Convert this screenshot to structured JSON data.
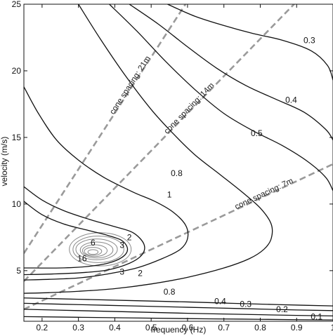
{
  "chart_data": {
    "type": "line",
    "title": "",
    "xlabel": "frequency (Hz)",
    "ylabel": "velocity (m/s)",
    "xlim": [
      0.15,
      1.0
    ],
    "ylim": [
      1.2,
      25
    ],
    "x_ticks": [
      "0.2",
      "0.3",
      "0.4",
      "0.5",
      "0.6",
      "0.7",
      "0.8",
      "0.9",
      "1"
    ],
    "y_ticks": [
      "5",
      "10",
      "15",
      "20",
      "25"
    ],
    "grid": false,
    "contour_levels": [
      "0.1",
      "0.2",
      "0.3",
      "0.4",
      "0.5",
      "0.8",
      "1",
      "2",
      "3",
      "6",
      "16"
    ],
    "contour_labels": [
      {
        "text": "0.3",
        "x": 0.935,
        "y": 22.3
      },
      {
        "text": "0.4",
        "x": 0.885,
        "y": 17.8
      },
      {
        "text": "0.5",
        "x": 0.79,
        "y": 15.3
      },
      {
        "text": "0.8",
        "x": 0.57,
        "y": 12.3
      },
      {
        "text": "1",
        "x": 0.55,
        "y": 10.7
      },
      {
        "text": "2",
        "x": 0.44,
        "y": 7.5
      },
      {
        "text": "3",
        "x": 0.42,
        "y": 6.9
      },
      {
        "text": "6",
        "x": 0.34,
        "y": 7.1
      },
      {
        "text": "16",
        "x": 0.31,
        "y": 5.9
      },
      {
        "text": "3",
        "x": 0.42,
        "y": 4.9
      },
      {
        "text": "2",
        "x": 0.47,
        "y": 4.8
      },
      {
        "text": "0.8",
        "x": 0.55,
        "y": 3.4
      },
      {
        "text": "0.4",
        "x": 0.69,
        "y": 2.7
      },
      {
        "text": "0.3",
        "x": 0.76,
        "y": 2.5
      },
      {
        "text": "0.2",
        "x": 0.86,
        "y": 2.1
      },
      {
        "text": "0.1",
        "x": 0.955,
        "y": 1.55
      }
    ],
    "cone_spacing_lines": [
      {
        "label": "cone spacing: 21m",
        "x": [
          0.15,
          0.63
        ],
        "y": [
          6.3,
          26.5
        ]
      },
      {
        "label": "cone spacing: 14m",
        "x": [
          0.15,
          1.0
        ],
        "y": [
          4.2,
          28.0
        ]
      },
      {
        "label": "cone spacing: 7m",
        "x": [
          0.15,
          1.0
        ],
        "y": [
          2.1,
          13.0
        ]
      }
    ],
    "contours": [
      {
        "level": "0.3",
        "x": [
          0.545,
          0.62,
          0.7,
          0.78,
          0.86,
          0.94,
          0.985,
          1.0
        ],
        "y": [
          25,
          24.1,
          23.4,
          22.8,
          22.3,
          21.5,
          20.4,
          19.3
        ]
      },
      {
        "level": "0.4",
        "x": [
          0.44,
          0.52,
          0.6,
          0.68,
          0.76,
          0.84,
          0.92,
          0.98,
          1.0
        ],
        "y": [
          25,
          23.5,
          21.8,
          20.2,
          18.9,
          17.9,
          16.9,
          15.6,
          14.8
        ]
      },
      {
        "level": "0.5",
        "x": [
          0.385,
          0.46,
          0.54,
          0.62,
          0.7,
          0.78,
          0.86,
          0.93,
          0.98,
          1.0
        ],
        "y": [
          25,
          23.0,
          20.7,
          18.6,
          16.8,
          15.5,
          14.4,
          13.2,
          12.0,
          11.0
        ]
      },
      {
        "level": "0.8",
        "x": [
          0.3,
          0.36,
          0.43,
          0.5,
          0.56,
          0.62,
          0.69,
          0.75,
          0.8,
          0.83,
          0.83,
          0.81,
          0.77,
          0.7,
          0.6,
          0.5,
          0.4,
          0.3,
          0.22,
          0.15
        ],
        "y": [
          25,
          22.4,
          19.6,
          17.1,
          15.3,
          13.7,
          12.2,
          10.9,
          9.7,
          8.5,
          7.4,
          6.6,
          5.9,
          5.2,
          4.5,
          4.0,
          3.65,
          3.45,
          3.35,
          3.3
        ]
      },
      {
        "level": "1",
        "x": [
          0.15,
          0.19,
          0.24,
          0.3,
          0.37,
          0.45,
          0.51,
          0.56,
          0.595,
          0.6,
          0.58,
          0.53,
          0.46,
          0.38,
          0.3,
          0.22,
          0.15
        ],
        "y": [
          18.8,
          16.8,
          14.8,
          13.3,
          12.0,
          10.9,
          10.2,
          9.4,
          8.4,
          7.4,
          6.6,
          5.9,
          5.2,
          4.75,
          4.45,
          4.35,
          4.3
        ]
      },
      {
        "level": "2",
        "x": [
          0.15,
          0.2,
          0.26,
          0.33,
          0.4,
          0.45,
          0.48,
          0.475,
          0.44,
          0.38,
          0.31,
          0.23,
          0.15
        ],
        "y": [
          11.3,
          10.3,
          9.5,
          8.85,
          8.3,
          7.85,
          7.0,
          6.2,
          5.55,
          5.05,
          4.85,
          4.75,
          4.7
        ]
      },
      {
        "level": "3",
        "x": [
          0.15,
          0.2,
          0.26,
          0.33,
          0.38,
          0.42,
          0.435,
          0.42,
          0.38,
          0.32,
          0.25,
          0.18,
          0.15
        ],
        "y": [
          10.2,
          9.2,
          8.5,
          8.0,
          7.65,
          7.25,
          6.6,
          6.0,
          5.55,
          5.3,
          5.2,
          5.2,
          5.2
        ]
      },
      {
        "level": "0.4",
        "x": [
          0.15,
          0.3,
          0.45,
          0.6,
          0.72,
          0.85,
          1.0
        ],
        "y": [
          2.95,
          2.85,
          2.75,
          2.65,
          2.55,
          2.45,
          2.35
        ]
      },
      {
        "level": "0.3",
        "x": [
          0.15,
          0.3,
          0.45,
          0.6,
          0.75,
          0.9,
          1.0
        ],
        "y": [
          2.55,
          2.45,
          2.35,
          2.25,
          2.15,
          2.05,
          2.0
        ]
      },
      {
        "level": "0.2",
        "x": [
          0.15,
          0.3,
          0.45,
          0.6,
          0.75,
          0.9,
          1.0
        ],
        "y": [
          2.1,
          2.0,
          1.9,
          1.8,
          1.72,
          1.64,
          1.6
        ]
      },
      {
        "level": "0.1",
        "x": [
          0.15,
          0.3,
          0.45,
          0.6,
          0.75,
          0.9,
          1.0
        ],
        "y": [
          1.55,
          1.5,
          1.45,
          1.4,
          1.36,
          1.32,
          1.3
        ]
      }
    ],
    "inner_contours": [
      {
        "cx": 0.36,
        "cy": 6.6,
        "rx": 0.085,
        "ry": 1.25
      },
      {
        "cx": 0.355,
        "cy": 6.6,
        "rx": 0.07,
        "ry": 1.0
      },
      {
        "cx": 0.35,
        "cy": 6.6,
        "rx": 0.057,
        "ry": 0.78
      },
      {
        "cx": 0.35,
        "cy": 6.55,
        "rx": 0.045,
        "ry": 0.6
      },
      {
        "cx": 0.345,
        "cy": 6.5,
        "rx": 0.034,
        "ry": 0.44
      },
      {
        "cx": 0.34,
        "cy": 6.45,
        "rx": 0.024,
        "ry": 0.3
      },
      {
        "cx": 0.34,
        "cy": 6.4,
        "rx": 0.014,
        "ry": 0.18
      }
    ],
    "colors": {
      "contour": "#111111",
      "inner_contour": "#888888",
      "dashed": "#9a9a9a"
    }
  }
}
